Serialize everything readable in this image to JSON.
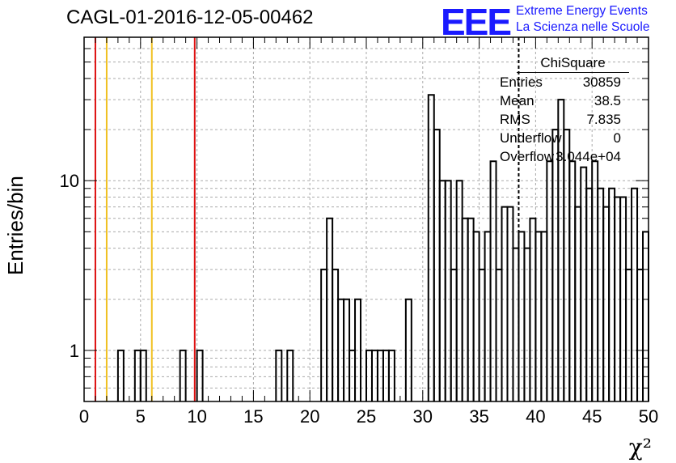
{
  "chart_data": {
    "type": "histogram",
    "title": "CAGL-01-2016-12-05-00462",
    "xlabel": "χ²",
    "ylabel": "Entries/bin",
    "xlim": [
      0,
      50
    ],
    "ylim": [
      0.5,
      70
    ],
    "yscale": "log",
    "grid": true,
    "xticks": [
      "0",
      "5",
      "10",
      "15",
      "20",
      "25",
      "30",
      "35",
      "40",
      "45",
      "50"
    ],
    "yticks": [
      "1",
      "10"
    ],
    "bin_width": 0.5,
    "bins": [
      {
        "x": 3.0,
        "y": 1
      },
      {
        "x": 4.5,
        "y": 1
      },
      {
        "x": 5.0,
        "y": 1
      },
      {
        "x": 8.5,
        "y": 1
      },
      {
        "x": 10.0,
        "y": 1
      },
      {
        "x": 17.0,
        "y": 1
      },
      {
        "x": 18.0,
        "y": 1
      },
      {
        "x": 21.0,
        "y": 3
      },
      {
        "x": 21.5,
        "y": 6
      },
      {
        "x": 22.0,
        "y": 3
      },
      {
        "x": 22.5,
        "y": 2
      },
      {
        "x": 23.0,
        "y": 2
      },
      {
        "x": 23.5,
        "y": 1
      },
      {
        "x": 24.0,
        "y": 2
      },
      {
        "x": 25.0,
        "y": 1
      },
      {
        "x": 25.5,
        "y": 1
      },
      {
        "x": 26.0,
        "y": 1
      },
      {
        "x": 26.5,
        "y": 1
      },
      {
        "x": 27.0,
        "y": 1
      },
      {
        "x": 28.5,
        "y": 2
      },
      {
        "x": 30.5,
        "y": 32
      },
      {
        "x": 31.0,
        "y": 20
      },
      {
        "x": 31.5,
        "y": 10
      },
      {
        "x": 32.0,
        "y": 10
      },
      {
        "x": 32.5,
        "y": 3
      },
      {
        "x": 33.0,
        "y": 10
      },
      {
        "x": 33.5,
        "y": 6
      },
      {
        "x": 34.0,
        "y": 6
      },
      {
        "x": 34.5,
        "y": 5
      },
      {
        "x": 35.0,
        "y": 3
      },
      {
        "x": 35.5,
        "y": 5
      },
      {
        "x": 36.0,
        "y": 13
      },
      {
        "x": 36.5,
        "y": 3
      },
      {
        "x": 37.0,
        "y": 7
      },
      {
        "x": 37.5,
        "y": 7
      },
      {
        "x": 38.0,
        "y": 4
      },
      {
        "x": 38.5,
        "y": 5
      },
      {
        "x": 39.0,
        "y": 4
      },
      {
        "x": 39.5,
        "y": 6
      },
      {
        "x": 40.0,
        "y": 5
      },
      {
        "x": 40.5,
        "y": 5
      },
      {
        "x": 41.0,
        "y": 13
      },
      {
        "x": 41.5,
        "y": 20
      },
      {
        "x": 42.0,
        "y": 30
      },
      {
        "x": 42.5,
        "y": 20
      },
      {
        "x": 43.0,
        "y": 13
      },
      {
        "x": 43.5,
        "y": 7
      },
      {
        "x": 44.0,
        "y": 12
      },
      {
        "x": 44.5,
        "y": 9
      },
      {
        "x": 45.0,
        "y": 13
      },
      {
        "x": 45.5,
        "y": 9
      },
      {
        "x": 46.0,
        "y": 7
      },
      {
        "x": 46.5,
        "y": 9
      },
      {
        "x": 47.0,
        "y": 8
      },
      {
        "x": 47.5,
        "y": 8
      },
      {
        "x": 48.0,
        "y": 3
      },
      {
        "x": 48.5,
        "y": 9
      },
      {
        "x": 49.0,
        "y": 3
      },
      {
        "x": 49.5,
        "y": 5
      }
    ],
    "vertical_lines": [
      {
        "x": 1.0,
        "color": "#dd1111",
        "style": "solid"
      },
      {
        "x": 2.0,
        "color": "#f0c020",
        "style": "solid"
      },
      {
        "x": 6.0,
        "color": "#f0c020",
        "style": "solid"
      },
      {
        "x": 9.8,
        "color": "#dd1111",
        "style": "solid"
      },
      {
        "x": 38.5,
        "color": "#000000",
        "style": "dashed"
      }
    ],
    "stats": {
      "name": "ChiSquare",
      "rows": [
        {
          "label": "Entries",
          "value": "30859"
        },
        {
          "label": "Mean",
          "value": "38.5"
        },
        {
          "label": "RMS",
          "value": "7.835"
        },
        {
          "label": "Underflow",
          "value": "0"
        },
        {
          "label": "Overflow",
          "value": "3.044e+04"
        }
      ]
    }
  },
  "logo": {
    "mark": "EEE",
    "line1": "Extreme Energy Events",
    "line2": "La Scienza nelle Scuole",
    "color": "#1a1aff"
  }
}
